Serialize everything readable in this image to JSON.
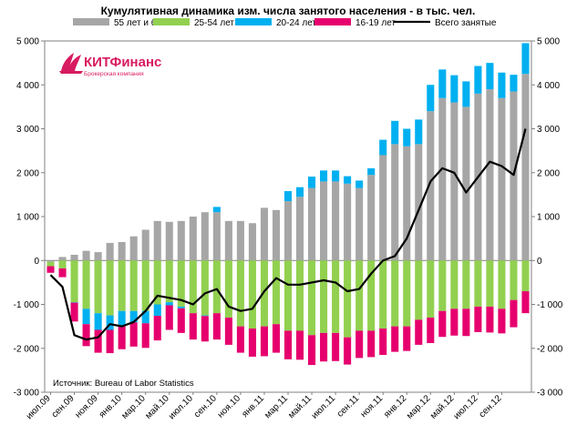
{
  "chart_data": {
    "type": "bar",
    "stacked": true,
    "title": "Кумулятивная динамика изм. числа занятого населения - в тыс. чел.",
    "source_note": "Источник: Bureau of Labor Statistics",
    "logo": {
      "brand": "КИТФинанс",
      "subtitle": "Брокерская компания"
    },
    "legend_position": "top",
    "ylim": [
      -3000,
      5000
    ],
    "y_ticks": [
      "-3 000",
      "-2 000",
      "-1 000",
      "0",
      "1 000",
      "2 000",
      "3 000",
      "4 000",
      "5 000"
    ],
    "y_tick_values": [
      -3000,
      -2000,
      -1000,
      0,
      1000,
      2000,
      3000,
      4000,
      5000
    ],
    "categories": [
      "июл.09",
      "авг.09",
      "сен.09",
      "окт.09",
      "ноя.09",
      "дек.09",
      "янв.10",
      "фев.10",
      "мар.10",
      "апр.10",
      "май.10",
      "июн.10",
      "июл.10",
      "авг.10",
      "сен.10",
      "окт.10",
      "ноя.10",
      "дек.10",
      "янв.11",
      "фев.11",
      "мар.11",
      "апр.11",
      "май.11",
      "июн.11",
      "июл.11",
      "авг.11",
      "сен.11",
      "окт.11",
      "ноя.11",
      "дек.11",
      "янв.12",
      "фев.12",
      "мар.12",
      "апр.12",
      "май.12",
      "июн.12",
      "июл.12",
      "авг.12",
      "сен.12",
      "окт.12",
      "ноя.12"
    ],
    "x_tick_labels": [
      "июл.09",
      "сен.09",
      "ноя.09",
      "янв.10",
      "мар.10",
      "май.10",
      "июл.10",
      "сен.10",
      "ноя.10",
      "янв.11",
      "мар.11",
      "май.11",
      "июл.11",
      "сен.11",
      "ноя.11",
      "янв.12",
      "мар.12",
      "май.12",
      "июл.12",
      "сен.12"
    ],
    "series": [
      {
        "name": "55 лет и более",
        "color": "#a6a6a6",
        "kind": "bar",
        "values": [
          -30,
          80,
          130,
          220,
          190,
          400,
          420,
          550,
          700,
          900,
          880,
          900,
          1000,
          1100,
          1100,
          900,
          900,
          850,
          1200,
          1150,
          1350,
          1450,
          1650,
          1800,
          1800,
          1750,
          1650,
          1950,
          2400,
          2650,
          2600,
          2650,
          3400,
          3700,
          3600,
          3500,
          3800,
          3900,
          3700,
          3850,
          4250
        ]
      },
      {
        "name": "25-54 лет",
        "color": "#92d050",
        "kind": "bar",
        "values": [
          -100,
          -180,
          -950,
          -1100,
          -1200,
          -1250,
          -1150,
          -1150,
          -1150,
          -1000,
          -950,
          -1050,
          -1200,
          -1250,
          -1200,
          -1300,
          -1500,
          -1550,
          -1500,
          -1450,
          -1600,
          -1600,
          -1700,
          -1650,
          -1650,
          -1750,
          -1600,
          -1600,
          -1550,
          -1500,
          -1500,
          -1350,
          -1300,
          -1150,
          -1100,
          -1100,
          -1050,
          -1050,
          -1100,
          -900,
          -700
        ]
      },
      {
        "name": "20-24 лет",
        "color": "#00b0f0",
        "kind": "bar",
        "values": [
          0,
          0,
          -10,
          -350,
          -380,
          -330,
          -330,
          -260,
          -280,
          -260,
          -70,
          -40,
          0,
          -15,
          120,
          0,
          0,
          0,
          0,
          0,
          230,
          220,
          260,
          250,
          250,
          170,
          170,
          150,
          350,
          530,
          400,
          560,
          600,
          650,
          620,
          580,
          630,
          600,
          580,
          380,
          700
        ]
      },
      {
        "name": "16-19 лет",
        "color": "#e6006e",
        "kind": "bar",
        "values": [
          -150,
          -200,
          -430,
          -500,
          -520,
          -530,
          -540,
          -550,
          -560,
          -560,
          -560,
          -560,
          -600,
          -580,
          -600,
          -620,
          -600,
          -640,
          -680,
          -650,
          -650,
          -660,
          -680,
          -650,
          -640,
          -620,
          -620,
          -600,
          -600,
          -580,
          -560,
          -570,
          -580,
          -590,
          -610,
          -620,
          -580,
          -590,
          -560,
          -620,
          -500
        ]
      },
      {
        "name": "Всего занятые",
        "color": "#000000",
        "kind": "line",
        "values": [
          -330,
          -600,
          -1700,
          -1800,
          -1750,
          -1450,
          -1500,
          -1400,
          -1150,
          -800,
          -850,
          -900,
          -1000,
          -750,
          -650,
          -1050,
          -1150,
          -1100,
          -700,
          -400,
          -550,
          -550,
          -500,
          -450,
          -500,
          -700,
          -650,
          -300,
          0,
          100,
          500,
          1150,
          1800,
          2100,
          2000,
          1550,
          1900,
          2250,
          2150,
          1950,
          3000
        ]
      }
    ]
  }
}
